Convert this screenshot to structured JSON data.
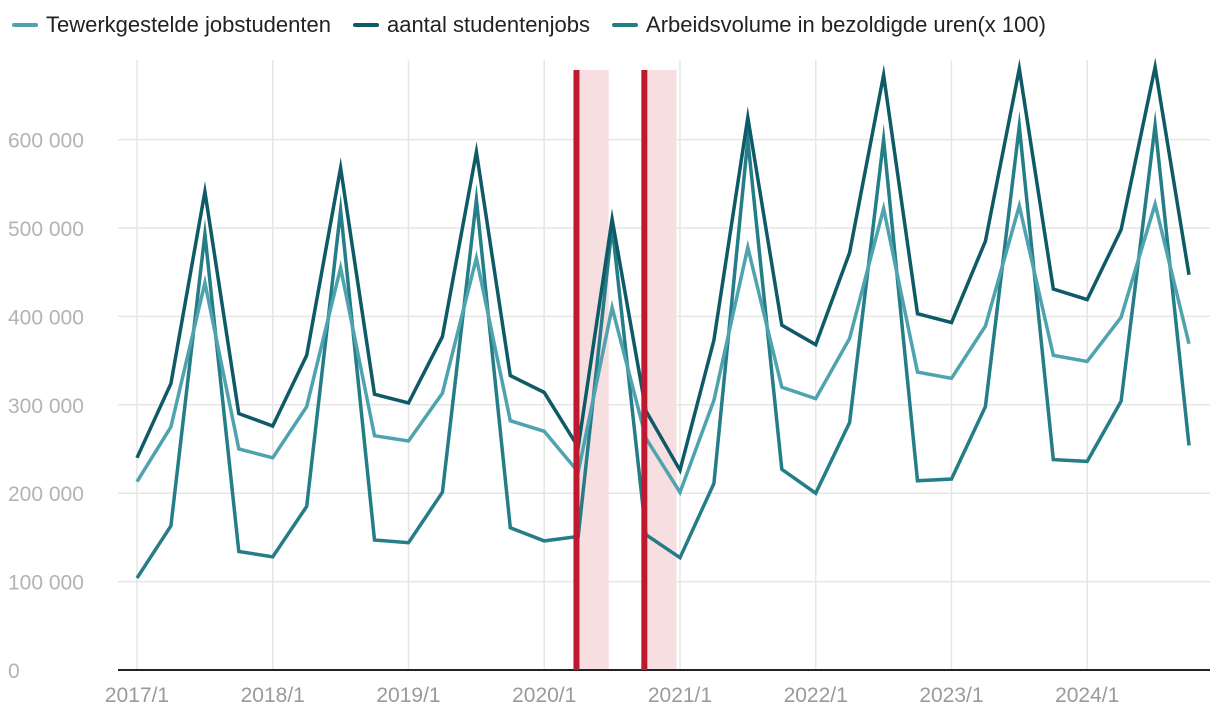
{
  "chart_data": {
    "type": "line",
    "x": [
      "2017/1",
      "2017/2",
      "2017/3",
      "2017/4",
      "2018/1",
      "2018/2",
      "2018/3",
      "2018/4",
      "2019/1",
      "2019/2",
      "2019/3",
      "2019/4",
      "2020/1",
      "2020/2",
      "2020/3",
      "2020/4",
      "2021/1",
      "2021/2",
      "2021/3",
      "2021/4",
      "2022/1",
      "2022/2",
      "2022/3",
      "2022/4",
      "2023/1",
      "2023/2",
      "2023/3",
      "2023/4",
      "2024/1",
      "2024/2",
      "2024/3",
      "2024/4"
    ],
    "x_tick_labels": [
      "2017/1",
      "2018/1",
      "2019/1",
      "2020/1",
      "2021/1",
      "2022/1",
      "2023/1",
      "2024/1"
    ],
    "y_ticks": [
      0,
      100000,
      200000,
      300000,
      400000,
      500000,
      600000
    ],
    "y_tick_labels": [
      "0",
      "100 000",
      "200 000",
      "300 000",
      "400 000",
      "500 000",
      "600 000"
    ],
    "ylim": [
      0,
      690000
    ],
    "grid": true,
    "legend_position": "top-left",
    "series": [
      {
        "name": "Tewerkgestelde jobstudenten",
        "color": "#4fa3ae",
        "values": [
          213000,
          275000,
          438000,
          250000,
          240000,
          298000,
          455000,
          265000,
          259000,
          313000,
          466000,
          282000,
          270000,
          224000,
          410000,
          262000,
          201000,
          305000,
          478000,
          320000,
          307000,
          375000,
          522000,
          337000,
          330000,
          389000,
          525000,
          356000,
          349000,
          399000,
          527000,
          369000
        ]
      },
      {
        "name": "aantal studentenjobs",
        "color": "#0e5a66",
        "values": [
          240000,
          324000,
          541000,
          290000,
          276000,
          356000,
          568000,
          312000,
          302000,
          377000,
          586000,
          333000,
          314000,
          252000,
          510000,
          293000,
          226000,
          373000,
          625000,
          390000,
          368000,
          472000,
          673000,
          403000,
          393000,
          485000,
          680000,
          431000,
          419000,
          498000,
          682000,
          447000
        ]
      },
      {
        "name": "Arbeidsvolume in bezoldigde uren(x 100)",
        "color": "#247d87",
        "values": [
          104000,
          163000,
          493000,
          134000,
          128000,
          185000,
          520000,
          147000,
          144000,
          201000,
          532000,
          161000,
          146000,
          151000,
          502000,
          153000,
          127000,
          211000,
          600000,
          227000,
          200000,
          280000,
          600000,
          214000,
          216000,
          298000,
          615000,
          238000,
          236000,
          304000,
          616000,
          254000
        ]
      }
    ],
    "annotations": {
      "red_lines_at": [
        "2020/2",
        "2020/4"
      ],
      "shaded_ranges": [
        [
          "2020/2",
          "2020/3"
        ],
        [
          "2020/4",
          "2021/1"
        ]
      ],
      "line_color": "#c0182f",
      "shade_color": "#f7dfe1"
    }
  }
}
